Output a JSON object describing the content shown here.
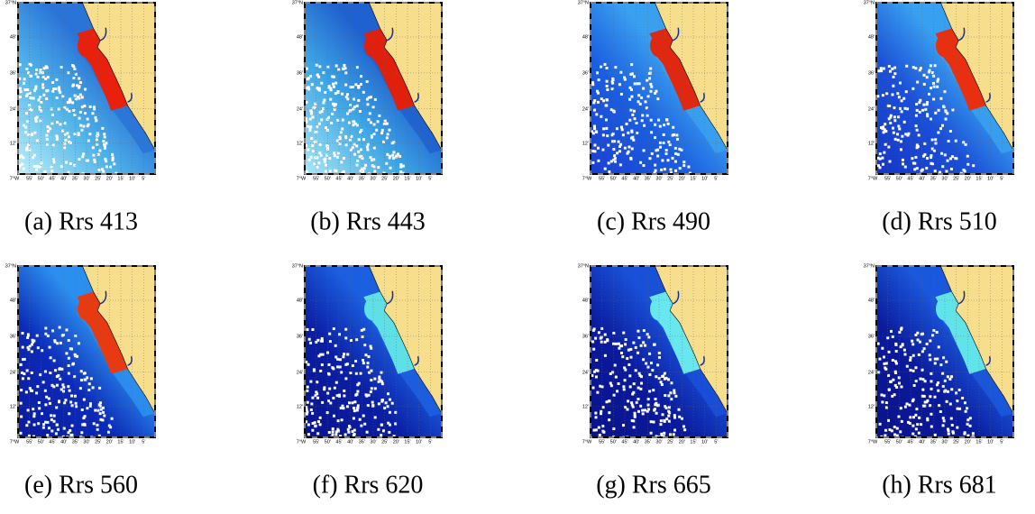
{
  "panels": [
    {
      "caption": "(a) Rrs 413"
    },
    {
      "caption": "(b) Rrs 443"
    },
    {
      "caption": "(c) Rrs 490"
    },
    {
      "caption": "(d) Rrs 510"
    },
    {
      "caption": "(e) Rrs 560"
    },
    {
      "caption": "(f) Rrs 620"
    },
    {
      "caption": "(g) Rrs 665"
    },
    {
      "caption": "(h) Rrs 681"
    }
  ],
  "map_labels": {
    "lat": [
      "37°N",
      "48'",
      "36'",
      "24'",
      "12'"
    ],
    "lon": [
      "7°W",
      "55'",
      "50'",
      "45'",
      "40'",
      "35'",
      "30'",
      "25'",
      "20'",
      "15'",
      "10'",
      "5'"
    ]
  }
}
